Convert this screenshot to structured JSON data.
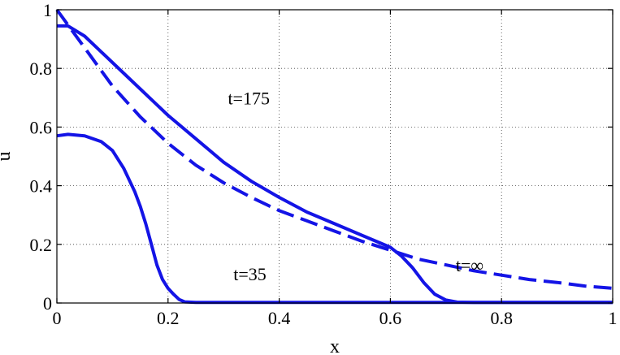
{
  "chart_data": {
    "type": "line",
    "xlabel": "x",
    "ylabel": "u",
    "xlim": [
      0,
      1
    ],
    "ylim": [
      0,
      1
    ],
    "x_ticks": [
      0,
      0.2,
      0.4,
      0.6,
      0.8,
      1
    ],
    "y_ticks": [
      0,
      0.2,
      0.4,
      0.6,
      0.8,
      1
    ],
    "x_tick_labels": [
      "0",
      "0.2",
      "0.4",
      "0.6",
      "0.8",
      "1"
    ],
    "y_tick_labels": [
      "0",
      "0.2",
      "0.4",
      "0.6",
      "0.8",
      "1"
    ],
    "grid": true,
    "line_color": "#1414e6",
    "series": [
      {
        "label": "t=35",
        "style": "solid",
        "x": [
          0,
          0.02,
          0.05,
          0.08,
          0.1,
          0.12,
          0.14,
          0.15,
          0.16,
          0.17,
          0.18,
          0.19,
          0.2,
          0.21,
          0.22,
          0.23,
          0.25,
          0.3,
          0.4,
          0.5,
          0.6,
          0.7,
          0.8,
          0.9,
          1.0
        ],
        "y": [
          0.57,
          0.575,
          0.57,
          0.55,
          0.52,
          0.46,
          0.38,
          0.33,
          0.27,
          0.2,
          0.13,
          0.08,
          0.05,
          0.03,
          0.012,
          0.004,
          0.002,
          0.002,
          0.002,
          0.002,
          0.002,
          0.002,
          0.002,
          0.002,
          0.002
        ]
      },
      {
        "label": "t=175",
        "style": "solid",
        "x": [
          0,
          0.02,
          0.05,
          0.1,
          0.15,
          0.2,
          0.25,
          0.3,
          0.35,
          0.4,
          0.45,
          0.5,
          0.55,
          0.6,
          0.62,
          0.64,
          0.66,
          0.68,
          0.7,
          0.72,
          0.75,
          0.8,
          0.9,
          1.0
        ],
        "y": [
          0.945,
          0.945,
          0.91,
          0.82,
          0.73,
          0.64,
          0.56,
          0.48,
          0.415,
          0.36,
          0.31,
          0.27,
          0.23,
          0.19,
          0.16,
          0.12,
          0.07,
          0.03,
          0.01,
          0.003,
          0.002,
          0.002,
          0.002,
          0.002
        ]
      },
      {
        "label": "t=∞",
        "style": "dashed",
        "x": [
          0,
          0.05,
          0.1,
          0.15,
          0.2,
          0.25,
          0.3,
          0.35,
          0.4,
          0.45,
          0.5,
          0.55,
          0.6,
          0.65,
          0.7,
          0.75,
          0.8,
          0.85,
          0.9,
          0.95,
          1.0
        ],
        "y": [
          1.0,
          0.87,
          0.74,
          0.635,
          0.545,
          0.47,
          0.41,
          0.36,
          0.315,
          0.28,
          0.245,
          0.21,
          0.18,
          0.15,
          0.13,
          0.11,
          0.095,
          0.08,
          0.07,
          0.058,
          0.05
        ]
      }
    ],
    "annotations": [
      {
        "text": "t=175",
        "x": 0.41,
        "y": 0.7
      },
      {
        "text": "t=35",
        "x": 0.42,
        "y": 0.1
      },
      {
        "text": "t=∞",
        "x": 0.82,
        "y": 0.13
      }
    ]
  }
}
